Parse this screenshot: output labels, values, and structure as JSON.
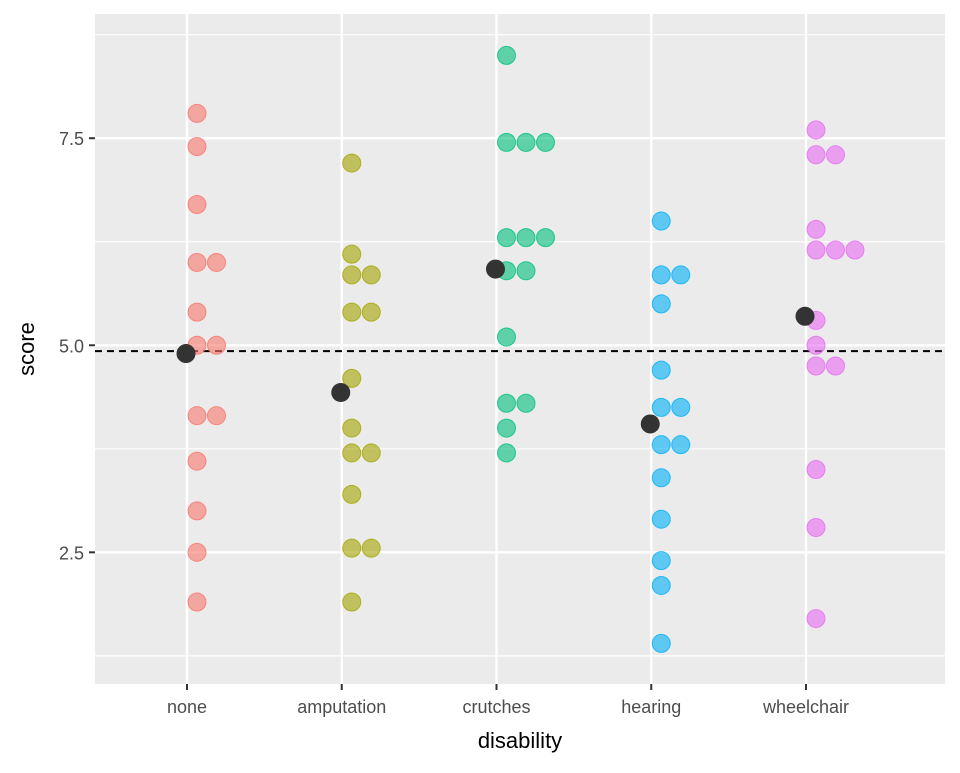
{
  "chart_data": {
    "type": "scatter",
    "xlabel": "disability",
    "ylabel": "score",
    "ylim": [
      0.91,
      9.0
    ],
    "y_ticks": [
      2.5,
      5.0,
      7.5
    ],
    "y_tick_labels": [
      "2.5",
      "5.0",
      "7.5"
    ],
    "y_minor_ticks": [
      1.25,
      3.75,
      6.25,
      8.75
    ],
    "categories": [
      "none",
      "amputation",
      "crutches",
      "hearing",
      "wheelchair"
    ],
    "grid": true,
    "legend": "none",
    "reference_line": {
      "y": 4.93,
      "style": "dashed",
      "color": "#000000"
    },
    "mean_color": "#333333",
    "series": [
      {
        "category": "none",
        "color": "#F8766D",
        "mean": 4.9,
        "values": [
          7.8,
          7.4,
          6.7,
          6.0,
          6.0,
          5.4,
          5.0,
          5.0,
          4.15,
          4.15,
          3.6,
          3.0,
          2.5,
          1.9
        ]
      },
      {
        "category": "amputation",
        "color": "#A3A500",
        "mean": 4.43,
        "values": [
          7.2,
          6.1,
          5.85,
          5.85,
          5.4,
          5.4,
          4.6,
          4.0,
          3.7,
          3.7,
          3.2,
          2.55,
          2.55,
          1.9
        ]
      },
      {
        "category": "crutches",
        "color": "#00BF7D",
        "mean": 5.92,
        "values": [
          8.5,
          7.45,
          7.45,
          7.45,
          6.3,
          6.3,
          6.3,
          5.9,
          5.9,
          5.1,
          4.3,
          4.3,
          4.0,
          3.7
        ]
      },
      {
        "category": "hearing",
        "color": "#00B0F6",
        "mean": 4.05,
        "values": [
          6.5,
          5.85,
          5.85,
          5.5,
          4.7,
          4.25,
          4.25,
          3.8,
          3.8,
          3.4,
          2.9,
          2.4,
          2.1,
          1.4
        ]
      },
      {
        "category": "wheelchair",
        "color": "#E76BF3",
        "mean": 5.35,
        "values": [
          7.6,
          7.3,
          7.3,
          6.4,
          6.15,
          6.15,
          6.15,
          5.3,
          5.0,
          4.75,
          4.75,
          3.5,
          2.8,
          1.7
        ]
      }
    ]
  }
}
